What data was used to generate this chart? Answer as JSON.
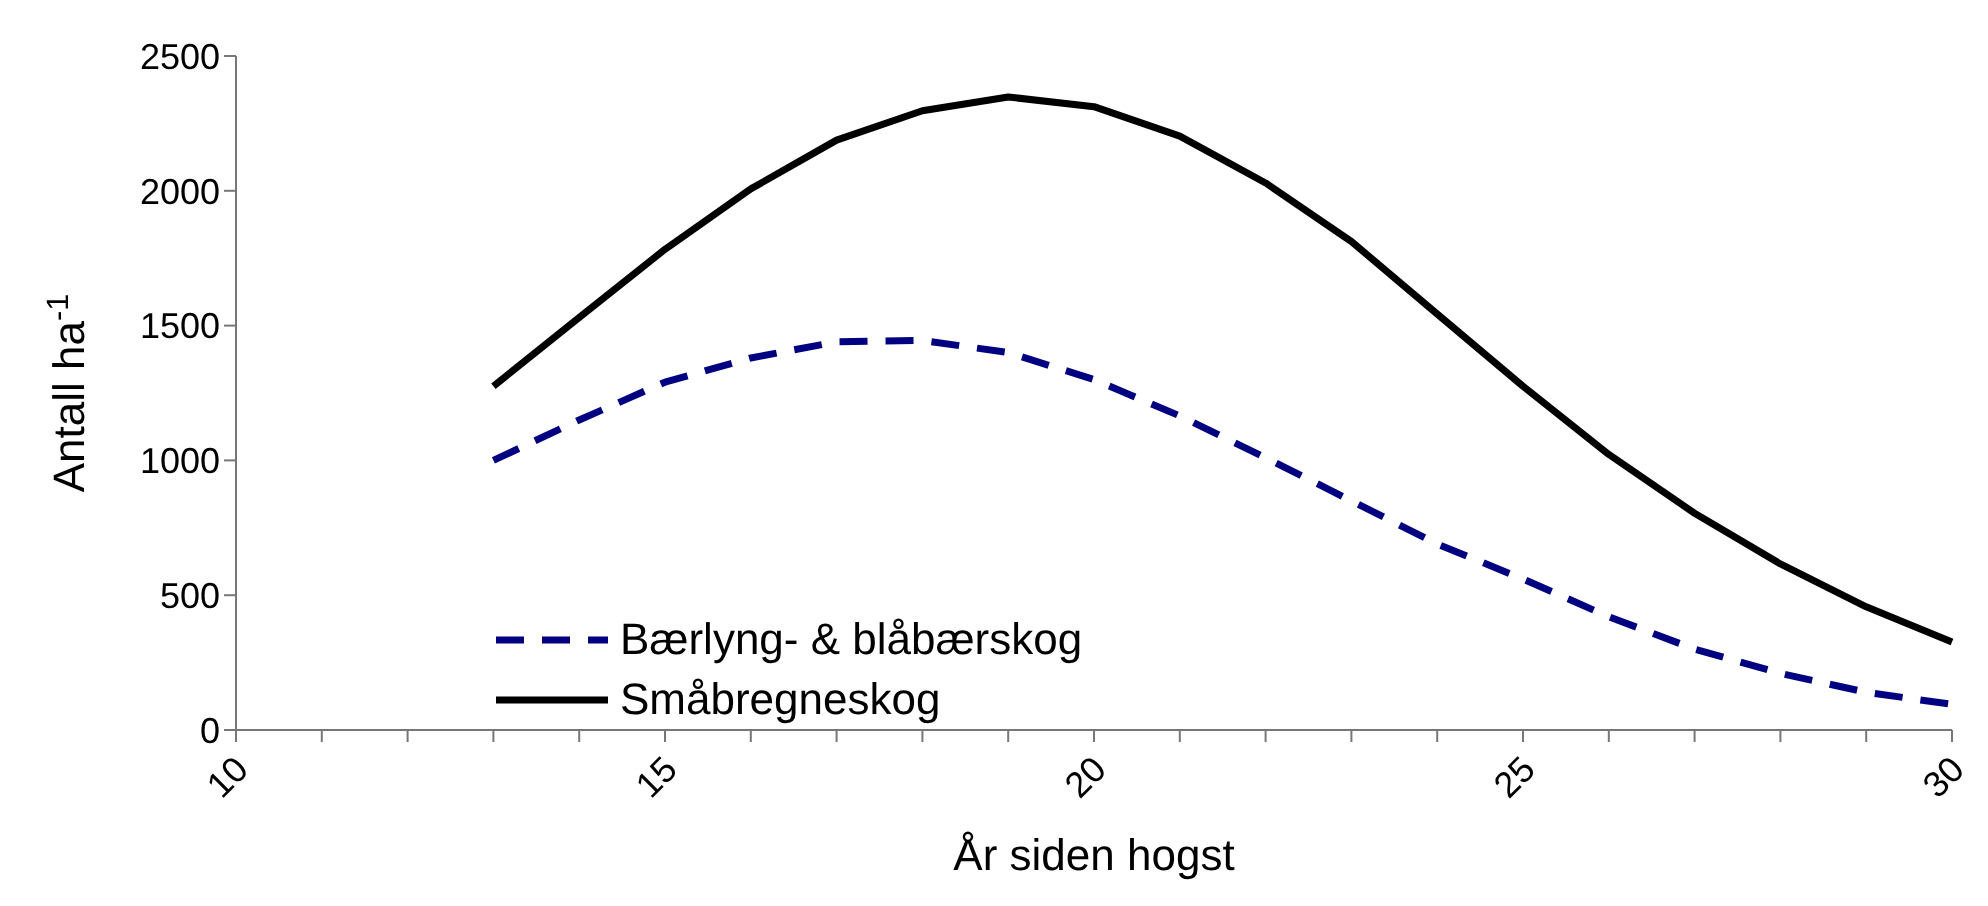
{
  "chart_data": {
    "type": "line",
    "xlabel": "År siden hogst",
    "ylabel": "Antall ha$^{-1}$",
    "categories": [
      "10",
      null,
      null,
      null,
      null,
      "15",
      null,
      null,
      null,
      null,
      "20",
      null,
      null,
      null,
      null,
      "25",
      null,
      null,
      null,
      null,
      "30"
    ],
    "series": [
      {
        "name": "Bærlyng- & blåbærskog",
        "color": "#000080",
        "line_style": "dashed",
        "values": [
          null,
          null,
          null,
          1000,
          1150,
          1290,
          1380,
          1440,
          1445,
          1400,
          1300,
          1165,
          1010,
          850,
          690,
          560,
          420,
          300,
          210,
          140,
          95
        ]
      },
      {
        "name": "Småbregneskog",
        "color": "#000000",
        "line_style": "solid",
        "values": [
          null,
          null,
          null,
          1275,
          1530,
          1783,
          2007,
          2188,
          2297,
          2348,
          2312,
          2203,
          2029,
          1812,
          1543,
          1275,
          1022,
          804,
          616,
          457,
          326
        ]
      }
    ],
    "ylim": [
      0,
      2500
    ],
    "yticks": [
      0,
      500,
      1000,
      1500,
      2000,
      2500
    ],
    "grid": false,
    "legend": "bottom left",
    "marker": "none"
  }
}
